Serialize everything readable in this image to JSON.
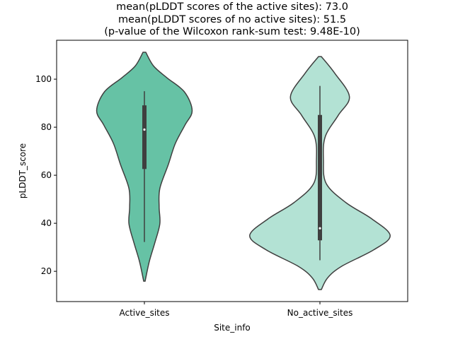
{
  "chart_data": {
    "type": "violin",
    "title": [
      "mean(pLDDT scores of the active sites): 73.0",
      "mean(pLDDT scores of no active sites): 51.5",
      "(p-value of the Wilcoxon rank-sum test: 9.48E-10)"
    ],
    "xlabel": "Site_info",
    "ylabel": "pLDDT_score",
    "ylim": [
      7.4,
      116.2
    ],
    "yticks": [
      20,
      40,
      60,
      80,
      100
    ],
    "categories": [
      "Active_sites",
      "No_active_sites"
    ],
    "series": [
      {
        "name": "Active_sites",
        "color": "#66c2a5",
        "density": [
          [
            15.9,
            0.01
          ],
          [
            24.1,
            0.07
          ],
          [
            32,
            0.15
          ],
          [
            39.8,
            0.22
          ],
          [
            46.7,
            0.21
          ],
          [
            54.5,
            0.22
          ],
          [
            64.4,
            0.34
          ],
          [
            73.2,
            0.44
          ],
          [
            81,
            0.58
          ],
          [
            86.9,
            0.68
          ],
          [
            94.7,
            0.57
          ],
          [
            100.6,
            0.32
          ],
          [
            105.5,
            0.13
          ],
          [
            111.2,
            0.02
          ]
        ],
        "box": {
          "whisker_low": 32.2,
          "q1": 62.6,
          "median": 79,
          "q3": 89.1,
          "whisker_high": 95
        }
      },
      {
        "name": "No_active_sites",
        "color": "#b3e2d4",
        "density": [
          [
            12.4,
            0.02
          ],
          [
            17.3,
            0.11
          ],
          [
            22.1,
            0.31
          ],
          [
            29,
            0.77
          ],
          [
            34.9,
            1.0
          ],
          [
            41.8,
            0.74
          ],
          [
            48.6,
            0.37
          ],
          [
            56.5,
            0.09
          ],
          [
            66.3,
            0.05
          ],
          [
            76,
            0.075
          ],
          [
            84.9,
            0.26
          ],
          [
            92.7,
            0.42
          ],
          [
            102.5,
            0.21
          ],
          [
            109.4,
            0.02
          ]
        ],
        "box": {
          "whisker_low": 24.6,
          "q1": 32.9,
          "median": 37.9,
          "q3": 85.1,
          "whisker_high": 97.2
        }
      }
    ]
  }
}
